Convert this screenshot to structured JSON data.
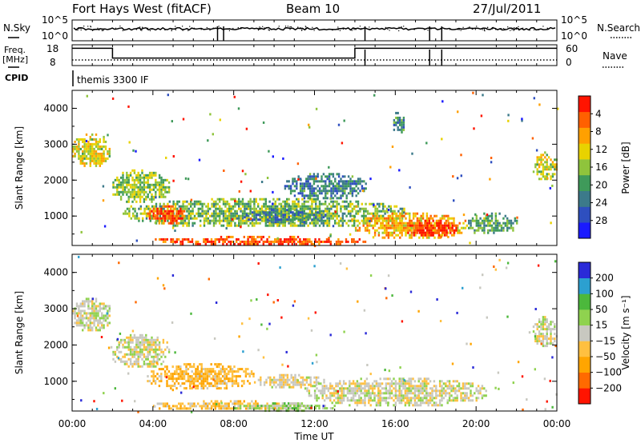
{
  "header": {
    "station": "Fort Hays West (fitACF)",
    "beam": "Beam 10",
    "date": "27/Jul/2011"
  },
  "strips": {
    "nsky_label": "N.Sky",
    "nsky_ticks": [
      "10^5",
      "10^0"
    ],
    "nsearch_label": "N.Search",
    "nsearch_ticks": [
      "10^5",
      "10^0"
    ],
    "freq_label_1": "Freq.",
    "freq_label_2": "[MHz]",
    "freq_ticks": [
      "18",
      "8"
    ],
    "nave_label": "Nave",
    "nave_ticks": [
      "60",
      "0"
    ],
    "cpid_label": "CPID",
    "cpid_value": "themis 3300 IF"
  },
  "axes": {
    "ylabel": "Slant Range [km]",
    "xlabel": "Time UT",
    "yticks": [
      "1000",
      "2000",
      "3000",
      "4000"
    ],
    "xticks": [
      "00:00",
      "04:00",
      "08:00",
      "12:00",
      "16:00",
      "20:00",
      "00:00"
    ]
  },
  "colorbars": {
    "power_label": "Power [dB]",
    "power_ticks": [
      "4",
      "8",
      "12",
      "16",
      "20",
      "24",
      "28"
    ],
    "velocity_label": "Velocity [m s⁻¹]",
    "velocity_ticks": [
      "200",
      "100",
      "50",
      "15",
      "−15",
      "−50",
      "−100",
      "−200"
    ]
  },
  "chart_data": [
    {
      "type": "heatmap",
      "name": "power",
      "x_range_hours": [
        0,
        24
      ],
      "y_range_km": [
        180,
        4500
      ],
      "color_range": [
        0,
        30
      ],
      "colors": [
        "#1a1aff",
        "#2e4fbf",
        "#3c7a8a",
        "#3f9a5a",
        "#8fc43c",
        "#e8d200",
        "#ffa000",
        "#ff6000",
        "#ff1400"
      ],
      "regions": [
        {
          "t": [
            0.0,
            1.9
          ],
          "r": [
            2400,
            3300
          ],
          "v": 18
        },
        {
          "t": [
            1.9,
            4.8
          ],
          "r": [
            1400,
            2300
          ],
          "v": 15
        },
        {
          "t": [
            2.5,
            16.5
          ],
          "r": [
            700,
            1500
          ],
          "v": 14
        },
        {
          "t": [
            3.7,
            5.6
          ],
          "r": [
            800,
            1300
          ],
          "v": 26
        },
        {
          "t": [
            8.5,
            12.5
          ],
          "r": [
            850,
            1200
          ],
          "v": 9
        },
        {
          "t": [
            10.5,
            14.5
          ],
          "r": [
            1500,
            2200
          ],
          "v": 9
        },
        {
          "t": [
            14.0,
            19.5
          ],
          "r": [
            400,
            1100
          ],
          "v": 21
        },
        {
          "t": [
            16.5,
            19.0
          ],
          "r": [
            450,
            900
          ],
          "v": 28
        },
        {
          "t": [
            4.0,
            14.5
          ],
          "r": [
            220,
            450
          ],
          "v": 26
        },
        {
          "t": [
            19.5,
            22.0
          ],
          "r": [
            500,
            1100
          ],
          "v": 12
        },
        {
          "t": [
            22.8,
            24.0
          ],
          "r": [
            2000,
            2800
          ],
          "v": 17
        },
        {
          "t": [
            15.8,
            16.4
          ],
          "r": [
            3300,
            3900
          ],
          "v": 10
        }
      ]
    },
    {
      "type": "heatmap",
      "name": "velocity",
      "x_range_hours": [
        0,
        24
      ],
      "y_range_km": [
        180,
        4500
      ],
      "color_range": [
        -200,
        200
      ],
      "colors": [
        "#ff1400",
        "#ff6a00",
        "#ffa500",
        "#ffc040",
        "#c8c8c0",
        "#8fd24f",
        "#4cb83c",
        "#2ca0d0",
        "#2a2ad8"
      ],
      "regions": [
        {
          "t": [
            0.0,
            1.9
          ],
          "r": [
            2400,
            3300
          ],
          "v": 0
        },
        {
          "t": [
            1.9,
            4.8
          ],
          "r": [
            1400,
            2300
          ],
          "v": 0
        },
        {
          "t": [
            3.7,
            9.0
          ],
          "r": [
            800,
            1500
          ],
          "v": -60
        },
        {
          "t": [
            9.0,
            12.5
          ],
          "r": [
            850,
            1200
          ],
          "v": -20
        },
        {
          "t": [
            11.5,
            20.5
          ],
          "r": [
            350,
            1100
          ],
          "v": 0
        },
        {
          "t": [
            4.0,
            11.5
          ],
          "r": [
            220,
            480
          ],
          "v": -50
        },
        {
          "t": [
            8.0,
            13.0
          ],
          "r": [
            220,
            420
          ],
          "v": 40
        },
        {
          "t": [
            22.8,
            24.0
          ],
          "r": [
            2000,
            2800
          ],
          "v": 0
        }
      ]
    },
    {
      "type": "line",
      "name": "frequency_mhz",
      "x": [
        0,
        2.0,
        2.0,
        14.0,
        14.0,
        24
      ],
      "y": [
        16.3,
        16.3,
        11.6,
        11.6,
        16.3,
        16.3
      ],
      "ylim": [
        8,
        18
      ]
    }
  ]
}
